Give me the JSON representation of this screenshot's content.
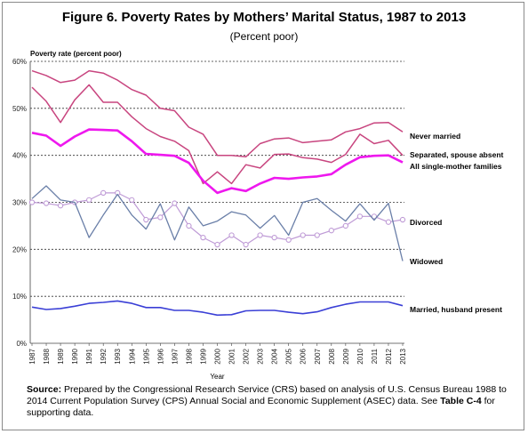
{
  "chart_data": {
    "type": "line",
    "title": "Figure 6. Poverty Rates by Mothers’ Marital Status, 1987 to 2013",
    "subtitle": "(Percent poor)",
    "ylabel": "Poverty rate (percent poor)",
    "xlabel": "Year",
    "ylim": [
      0,
      60
    ],
    "yticks": [
      "0%",
      "10%",
      "20%",
      "30%",
      "40%",
      "50%",
      "60%"
    ],
    "categories": [
      "1987",
      "1988",
      "1989",
      "1990",
      "1991",
      "1992",
      "1993",
      "1994",
      "1995",
      "1996",
      "1997",
      "1998",
      "1999",
      "2000",
      "2001",
      "2002",
      "2003",
      "2004",
      "2005",
      "2006",
      "2007",
      "2008",
      "2009",
      "2010",
      "2011",
      "2012",
      "2013"
    ],
    "grid": true,
    "series": [
      {
        "name": "Never married",
        "color": "#c8457f",
        "width": 1.5,
        "marker": "none",
        "values": [
          58.0,
          57.0,
          55.5,
          56.0,
          58.0,
          57.5,
          56.0,
          54.0,
          52.8,
          50.0,
          49.5,
          46.0,
          44.5,
          40.0,
          40.0,
          39.7,
          42.5,
          43.5,
          43.7,
          42.7,
          43.0,
          43.3,
          45.0,
          45.7,
          46.9,
          47.0,
          45.0
        ]
      },
      {
        "name": "Separated, spouse absent",
        "color": "#c8457f",
        "width": 1.5,
        "marker": "none",
        "values": [
          54.5,
          51.5,
          47.0,
          51.8,
          55.0,
          51.3,
          51.3,
          48.2,
          45.7,
          44.0,
          43.0,
          41.0,
          34.0,
          36.5,
          34.0,
          38.0,
          37.3,
          40.2,
          40.3,
          39.5,
          39.2,
          38.5,
          40.2,
          44.5,
          42.5,
          43.2,
          40.0
        ]
      },
      {
        "name": "All single-mother families",
        "color": "#ee18ee",
        "width": 2.6,
        "marker": "none",
        "values": [
          44.8,
          44.2,
          42.0,
          44.0,
          45.5,
          45.4,
          45.3,
          43.0,
          40.3,
          40.1,
          39.9,
          38.4,
          34.6,
          32.0,
          33.0,
          32.4,
          34.0,
          35.2,
          35.0,
          35.3,
          35.5,
          36.0,
          38.0,
          39.6,
          39.9,
          40.0,
          38.5
        ]
      },
      {
        "name": "Divorced",
        "color": "#bf9bd6",
        "width": 1.2,
        "marker": "circle",
        "values": [
          30.0,
          29.8,
          29.3,
          30.0,
          30.5,
          32.0,
          32.0,
          30.5,
          26.3,
          26.8,
          29.8,
          25.0,
          22.5,
          21.0,
          23.0,
          21.0,
          23.0,
          22.5,
          22.0,
          23.0,
          23.0,
          24.0,
          25.0,
          27.0,
          27.0,
          25.8,
          26.3
        ]
      },
      {
        "name": "Widowed",
        "color": "#6a7fa8",
        "width": 1.3,
        "marker": "none",
        "values": [
          30.8,
          33.5,
          30.5,
          30.0,
          22.5,
          27.3,
          31.7,
          27.3,
          24.3,
          29.7,
          22.0,
          29.0,
          25.0,
          26.0,
          28.0,
          27.3,
          24.5,
          27.2,
          23.0,
          30.0,
          30.8,
          28.3,
          26.0,
          29.7,
          26.2,
          29.8,
          17.5
        ]
      },
      {
        "name": "Married, husband present",
        "color": "#3a3fd6",
        "width": 1.6,
        "marker": "none",
        "values": [
          7.7,
          7.2,
          7.4,
          7.9,
          8.5,
          8.7,
          9.0,
          8.5,
          7.6,
          7.6,
          7.0,
          7.0,
          6.6,
          6.0,
          6.1,
          6.9,
          7.0,
          7.0,
          6.6,
          6.3,
          6.7,
          7.6,
          8.3,
          8.8,
          8.8,
          8.8,
          8.0
        ]
      }
    ]
  },
  "source": {
    "label": "Source:",
    "text_before_bold": " Prepared by the Congressional Research Service (CRS) based on analysis of U.S. Census Bureau 1988 to 2014 Current Population Survey (CPS) Annual Social and Economic Supplement (ASEC) data. See ",
    "bold_ref": "Table C-4",
    "text_after_bold": " for supporting data."
  }
}
